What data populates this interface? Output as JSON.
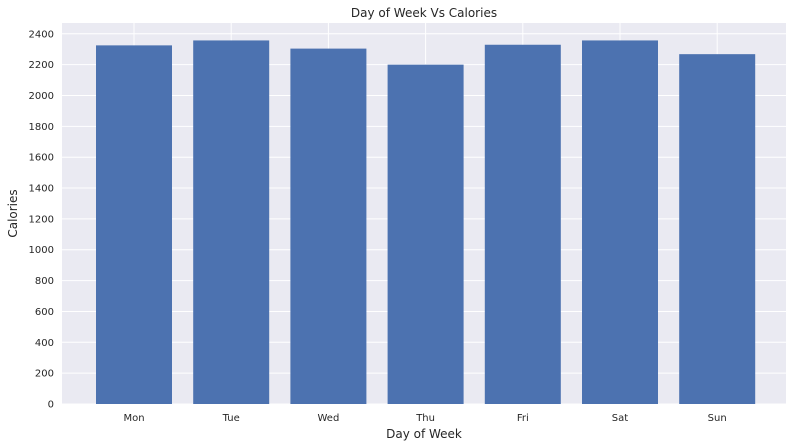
{
  "chart_data": {
    "type": "bar",
    "title": "Day of Week Vs Calories",
    "xlabel": "Day of Week",
    "ylabel": "Calories",
    "categories": [
      "Mon",
      "Tue",
      "Wed",
      "Thu",
      "Fri",
      "Sat",
      "Sun"
    ],
    "values": [
      2325,
      2357,
      2304,
      2200,
      2329,
      2357,
      2268
    ],
    "ylim": [
      0,
      2470
    ],
    "yticks": [
      0,
      200,
      400,
      600,
      800,
      1000,
      1200,
      1400,
      1600,
      1800,
      2000,
      2200,
      2400
    ],
    "grid": true,
    "bar_color": "#4c72b0",
    "background_color": "#eaeaf2",
    "grid_color": "#ffffff"
  }
}
